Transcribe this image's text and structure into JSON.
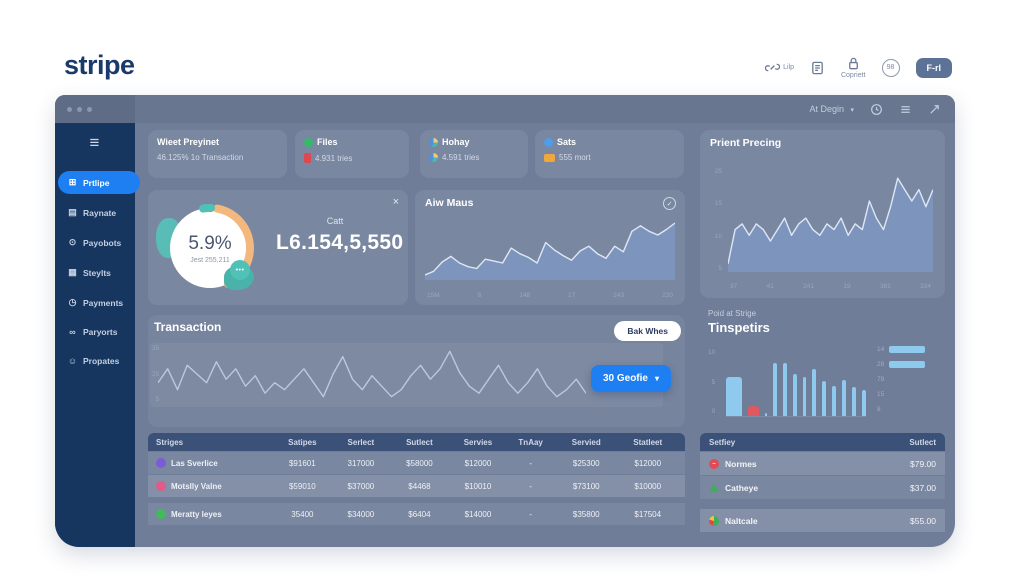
{
  "colors": {
    "accent_blue": "#1d7ff2",
    "sidebar_navy": "#16365f",
    "logo_navy": "#1a3a6b",
    "bar_blue": "#8ec9ee",
    "bar_red": "#e0585f",
    "line_stroke": "#dde7f5",
    "area_fill": "#7e98c2",
    "spark_stroke": "#b7c9e4",
    "orange": "#f3b87e",
    "teal": "#4fc1b6"
  },
  "logo": "stripe",
  "header": {
    "share_label": "Lilp",
    "lock_label": "Copriett",
    "badge_text": "98",
    "primary_button": "F-rl"
  },
  "topbar": {
    "account": "At Degin",
    "chevron": "▾"
  },
  "sidebar": {
    "burger": "≡",
    "items": [
      {
        "label": "Prtlipe",
        "glyph": "⊞",
        "icon": "grid-icon",
        "active": true
      },
      {
        "label": "Raynate",
        "glyph": "▤",
        "icon": "card-icon"
      },
      {
        "label": "Payobots",
        "glyph": "⊙",
        "icon": "coin-icon"
      },
      {
        "label": "Steylts",
        "glyph": "▦",
        "icon": "wallet-icon"
      },
      {
        "label": "Payments",
        "glyph": "◷",
        "icon": "clock-icon"
      },
      {
        "label": "Paryorts",
        "glyph": "∞",
        "icon": "link-icon"
      },
      {
        "label": "Propates",
        "glyph": "☺",
        "icon": "smiley-icon"
      }
    ]
  },
  "stat_cards": [
    {
      "title": "Wieet Preyinet",
      "subtitle": "46.125% 1o Transaction"
    },
    {
      "title": "Files",
      "subtitle": "4.931 tries",
      "title_icon": "green-circle-icon",
      "sub_icon": "red-pin-icon"
    },
    {
      "title": "Hohay",
      "subtitle": "4.591 tries",
      "title_icon": "pie-icon",
      "sub_icon": "pie-icon"
    },
    {
      "title": "Sats",
      "subtitle": "555 mort",
      "title_icon": "blue-circle-icon",
      "sub_icon": "orange-box-icon"
    }
  ],
  "donut_card": {
    "percent": "5.9%",
    "caption": "Jest 255,211",
    "label": "Catt",
    "value": "L6.154,5,550",
    "close": "×",
    "chat_dots": "•••"
  },
  "aiw": {
    "title": "Aiw Maus",
    "check": "✓",
    "x_labels": [
      "15M",
      "8",
      "148",
      "17",
      "243",
      "220"
    ],
    "values": [
      20,
      24,
      34,
      40,
      33,
      29,
      27,
      37,
      35,
      33,
      49,
      43,
      39,
      33,
      55,
      47,
      41,
      36,
      46,
      51,
      43,
      38,
      51,
      45,
      67,
      73,
      67,
      63,
      69,
      76
    ]
  },
  "prient": {
    "title": "Prient Precing",
    "y_labels": [
      "25",
      "15",
      "10",
      "5"
    ],
    "x_labels": [
      "37",
      "41",
      "241",
      "19",
      "381",
      "334"
    ],
    "values": [
      8,
      14,
      15,
      13,
      15,
      14,
      12,
      14,
      16,
      13,
      15,
      16,
      14,
      13,
      15,
      14,
      16,
      13,
      15,
      14,
      19,
      16,
      14,
      18,
      23,
      21,
      19,
      21,
      18,
      21
    ]
  },
  "transaction": {
    "title": "Transaction",
    "pill": "Bak Whes",
    "dropdown": "30 Geofie",
    "chevron": "▾",
    "y_labels": [
      "35",
      "25",
      "5"
    ],
    "values": [
      50,
      58,
      46,
      60,
      55,
      50,
      62,
      52,
      58,
      48,
      54,
      44,
      50,
      46,
      52,
      58,
      50,
      42,
      55,
      65,
      52,
      46,
      54,
      48,
      42,
      46,
      54,
      60,
      52,
      58,
      68,
      56,
      48,
      44,
      52,
      60,
      50,
      44,
      50,
      58,
      48,
      42,
      46,
      52,
      44
    ]
  },
  "main_table": {
    "headers": [
      "Striges",
      "Satipes",
      "Serlect",
      "Sutlect",
      "Servies",
      "TnAay",
      "Servied",
      "Statleet"
    ],
    "rows": [
      {
        "name": "Las Sverlice",
        "dot_color": "#7a5cd6",
        "cells": [
          "$91601",
          "317000",
          "$58000",
          "$12000",
          "-",
          "$25300",
          "$12000"
        ]
      },
      {
        "name": "Motslly Valne",
        "dot_color": "#e05a8a",
        "cells": [
          "$59010",
          "$37000",
          "$4468",
          "$10010",
          "-",
          "$73100",
          "$10000"
        ]
      },
      {
        "name": "Meratty leyes",
        "dot_color": "#43b95e",
        "cells": [
          "35400",
          "$34000",
          "$6404",
          "$14000",
          "-",
          "$35800",
          "$17504"
        ]
      }
    ]
  },
  "tinspetirs": {
    "eyebrow": "Poid at Strige",
    "title": "Tinspetirs",
    "left_ticks": [
      "10",
      "5",
      "0"
    ],
    "right_ticks": [
      "14",
      "28",
      "79",
      "15",
      "8"
    ],
    "bars": [
      {
        "value": 60,
        "color": "#8ec9ee",
        "width": 24
      },
      {
        "value": 16,
        "color": "#e0585f",
        "width": 17
      },
      {
        "value": 4,
        "color": "#8ec9ee",
        "width": 3
      },
      {
        "value": 82,
        "color": "#8ec9ee",
        "width": 6
      },
      {
        "value": 82,
        "color": "#8ec9ee",
        "width": 6
      },
      {
        "value": 64,
        "color": "#8ec9ee",
        "width": 6
      },
      {
        "value": 60,
        "color": "#8ec9ee",
        "width": 6
      },
      {
        "value": 72,
        "color": "#8ec9ee",
        "width": 6
      },
      {
        "value": 54,
        "color": "#8ec9ee",
        "width": 6
      },
      {
        "value": 46,
        "color": "#8ec9ee",
        "width": 6
      },
      {
        "value": 56,
        "color": "#8ec9ee",
        "width": 6
      },
      {
        "value": 44,
        "color": "#8ec9ee",
        "width": 6
      },
      {
        "value": 40,
        "color": "#8ec9ee",
        "width": 6
      }
    ]
  },
  "side_table": {
    "headers": [
      "Setfiey",
      "Sutlect"
    ],
    "rows": [
      {
        "name": "Normes",
        "value": "$79.00"
      },
      {
        "name": "Catheye",
        "value": "$37.00"
      },
      {
        "name": "Naltcale",
        "value": "$55.00"
      }
    ]
  }
}
